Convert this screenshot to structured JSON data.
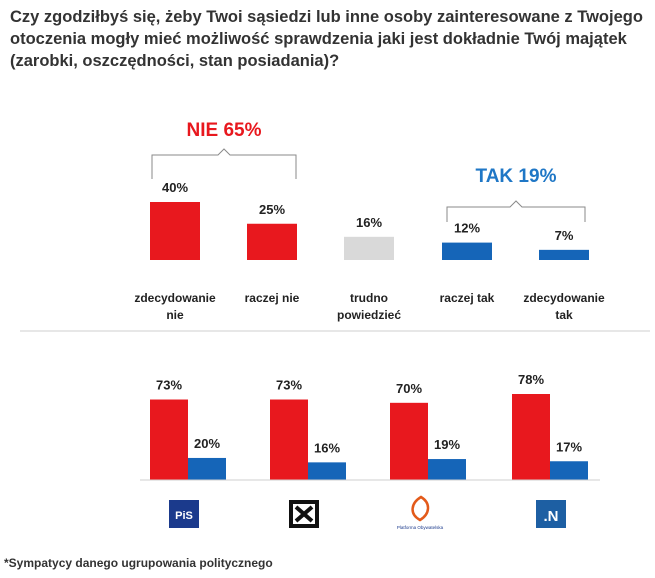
{
  "question_lines": [
    "Czy zgodziłbyś się, żeby Twoi sąsiedzi lub inne osoby zainteresowane z Twojego",
    "otoczenia mogły mieć możliwość sprawdzenia jaki jest dokładnie Twój majątek",
    "(zarobki, oszczędności, stan posiadania)?"
  ],
  "footnote": "*Sympatycy danego ugrupowania politycznego",
  "colors": {
    "red": "#e8181e",
    "blue": "#1565b8",
    "gray": "#d9d9d9",
    "nie_label": "#e8181e",
    "tak_label": "#1f77c6"
  },
  "chart_data": [
    {
      "type": "bar",
      "title": "",
      "categories": [
        [
          "zdecydowanie",
          "nie"
        ],
        [
          "raczej nie"
        ],
        [
          "trudno",
          "powiedzieć"
        ],
        [
          "raczej tak"
        ],
        [
          "zdecydowanie",
          "tak"
        ]
      ],
      "values": [
        40,
        25,
        16,
        12,
        7
      ],
      "value_labels": [
        "40%",
        "25%",
        "16%",
        "12%",
        "7%"
      ],
      "bar_colors": [
        "red",
        "red",
        "gray",
        "blue",
        "blue"
      ],
      "groups": [
        {
          "label": "NIE 65%",
          "color": "nie_label",
          "covers": [
            0,
            1
          ]
        },
        {
          "label": "TAK 19%",
          "color": "tak_label",
          "covers": [
            3,
            4
          ]
        }
      ],
      "ylim": [
        0,
        40
      ]
    },
    {
      "type": "bar",
      "title": "",
      "categories": [
        "PiS",
        "Kukiz'15",
        "Platforma Obywatelska",
        "Nowoczesna"
      ],
      "series": [
        {
          "name": "NIE",
          "color": "red",
          "values": [
            73,
            73,
            70,
            78
          ],
          "labels": [
            "73%",
            "73%",
            "70%",
            "78%"
          ]
        },
        {
          "name": "TAK",
          "color": "blue",
          "values": [
            20,
            16,
            19,
            17
          ],
          "labels": [
            "20%",
            "16%",
            "19%",
            "17%"
          ]
        }
      ],
      "logos": [
        {
          "text": "PiS",
          "icon": "pis-logo"
        },
        {
          "text": "",
          "icon": "kukiz-logo"
        },
        {
          "text": "Platforma Obywatelska",
          "icon": "po-logo"
        },
        {
          "text": ".N",
          "icon": "nowoczesna-logo"
        }
      ],
      "ylim": [
        0,
        78
      ]
    }
  ]
}
